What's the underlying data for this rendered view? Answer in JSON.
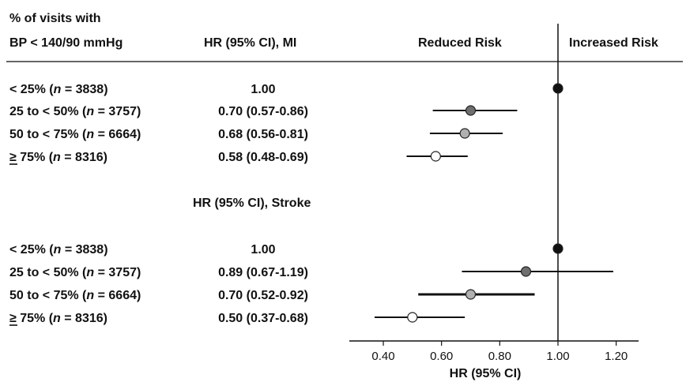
{
  "header": {
    "col1_line1": "% of visits with",
    "col1_line2": "BP < 140/90 mmHg",
    "col2": "HR (95% CI), MI",
    "reduced": "Reduced Risk",
    "increased": "Increased Risk"
  },
  "stroke_header": "HR (95% CI), Stroke",
  "chart_data": {
    "type": "forest",
    "xlabel": "HR (95% CI)",
    "xlim": [
      0.33,
      1.22
    ],
    "xticks": [
      "0.40",
      "0.60",
      "0.80",
      "1.00",
      "1.20"
    ],
    "xtick_values": [
      0.4,
      0.6,
      0.8,
      1.0,
      1.2
    ],
    "reference_line": 1.0,
    "groups": [
      {
        "name": "MI",
        "rows": [
          {
            "label_pre": "< 25% (",
            "n_label": "n",
            "label_post": " = 3838)",
            "hr_text": "1.00",
            "hr": 1.0,
            "lo": null,
            "hi": null,
            "marker_color": "#111111"
          },
          {
            "label_pre": "25 to < 50% (",
            "n_label": "n",
            "label_post": " = 3757)",
            "hr_text": "0.70 (0.57-0.86)",
            "hr": 0.7,
            "lo": 0.57,
            "hi": 0.86,
            "marker_color": "#6e6e6e"
          },
          {
            "label_pre": "50 to < 75% (",
            "n_label": "n",
            "label_post": " = 6664)",
            "hr_text": "0.68 (0.56-0.81)",
            "hr": 0.68,
            "lo": 0.56,
            "hi": 0.81,
            "marker_color": "#b0b0b0"
          },
          {
            "label_pre": "≥ 75% (",
            "n_label": "n",
            "label_post": " = 8316)",
            "hr_text": "0.58 (0.48-0.69)",
            "hr": 0.58,
            "lo": 0.48,
            "hi": 0.69,
            "marker_color": "#ffffff"
          }
        ]
      },
      {
        "name": "Stroke",
        "rows": [
          {
            "label_pre": "< 25% (",
            "n_label": "n",
            "label_post": " = 3838)",
            "hr_text": "1.00",
            "hr": 1.0,
            "lo": null,
            "hi": null,
            "marker_color": "#111111"
          },
          {
            "label_pre": "25 to < 50% (",
            "n_label": "n",
            "label_post": " = 3757)",
            "hr_text": "0.89 (0.67-1.19)",
            "hr": 0.89,
            "lo": 0.67,
            "hi": 1.19,
            "marker_color": "#6e6e6e"
          },
          {
            "label_pre": "50 to < 75% (",
            "n_label": "n",
            "label_post": " = 6664)",
            "hr_text": "0.70 (0.52-0.92)",
            "hr": 0.7,
            "lo": 0.52,
            "hi": 0.92,
            "marker_color": "#b0b0b0"
          },
          {
            "label_pre": "≥ 75% (",
            "n_label": "n",
            "label_post": " = 8316)",
            "hr_text": "0.50 (0.37-0.68)",
            "hr": 0.5,
            "lo": 0.37,
            "hi": 0.68,
            "marker_color": "#ffffff"
          }
        ]
      }
    ]
  }
}
